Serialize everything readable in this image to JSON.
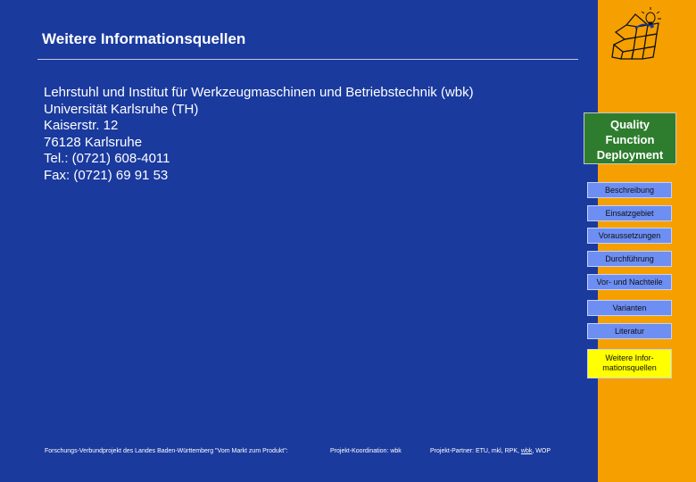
{
  "page": {
    "title": "Weitere Informationsquellen",
    "address_lines": [
      "Lehrstuhl und Institut für Werkzeugmaschinen und Betriebstechnik (wbk)",
      "Universität Karlsruhe (TH)",
      "Kaiserstr. 12",
      "76128 Karlsruhe",
      "Tel.: (0721) 608-4011",
      "Fax: (0721) 69 91 53"
    ]
  },
  "footer": {
    "project": "Forschungs-Verbundprojekt des Landes Baden-Württemberg \"Vom Markt zum Produkt\":",
    "coordination": "Projekt-Koordination:  wbk",
    "partners_prefix": "Projekt-Partner: ETU, mkl, RPK, ",
    "partners_underlined": "wbk",
    "partners_suffix": ", WOP"
  },
  "sidebar": {
    "section_title_lines": [
      "Quality",
      "Function",
      "Deployment"
    ],
    "nav": [
      {
        "label": "Beschreibung"
      },
      {
        "label": "Einsatzgebiet"
      },
      {
        "label": "Voraussetzungen"
      },
      {
        "label": "Durchführung"
      },
      {
        "label": "Vor- und Nachteile"
      },
      {
        "label": "Varianten"
      },
      {
        "label": "Literatur"
      }
    ],
    "active_nav_lines": [
      "Weitere Infor-",
      "mationsquellen"
    ]
  },
  "colors": {
    "background": "#1a3a9e",
    "sidebar": "#f5a000",
    "qfd_box": "#2e7d2e",
    "nav_button": "#6d8ef2",
    "active_button": "#ffff00"
  }
}
